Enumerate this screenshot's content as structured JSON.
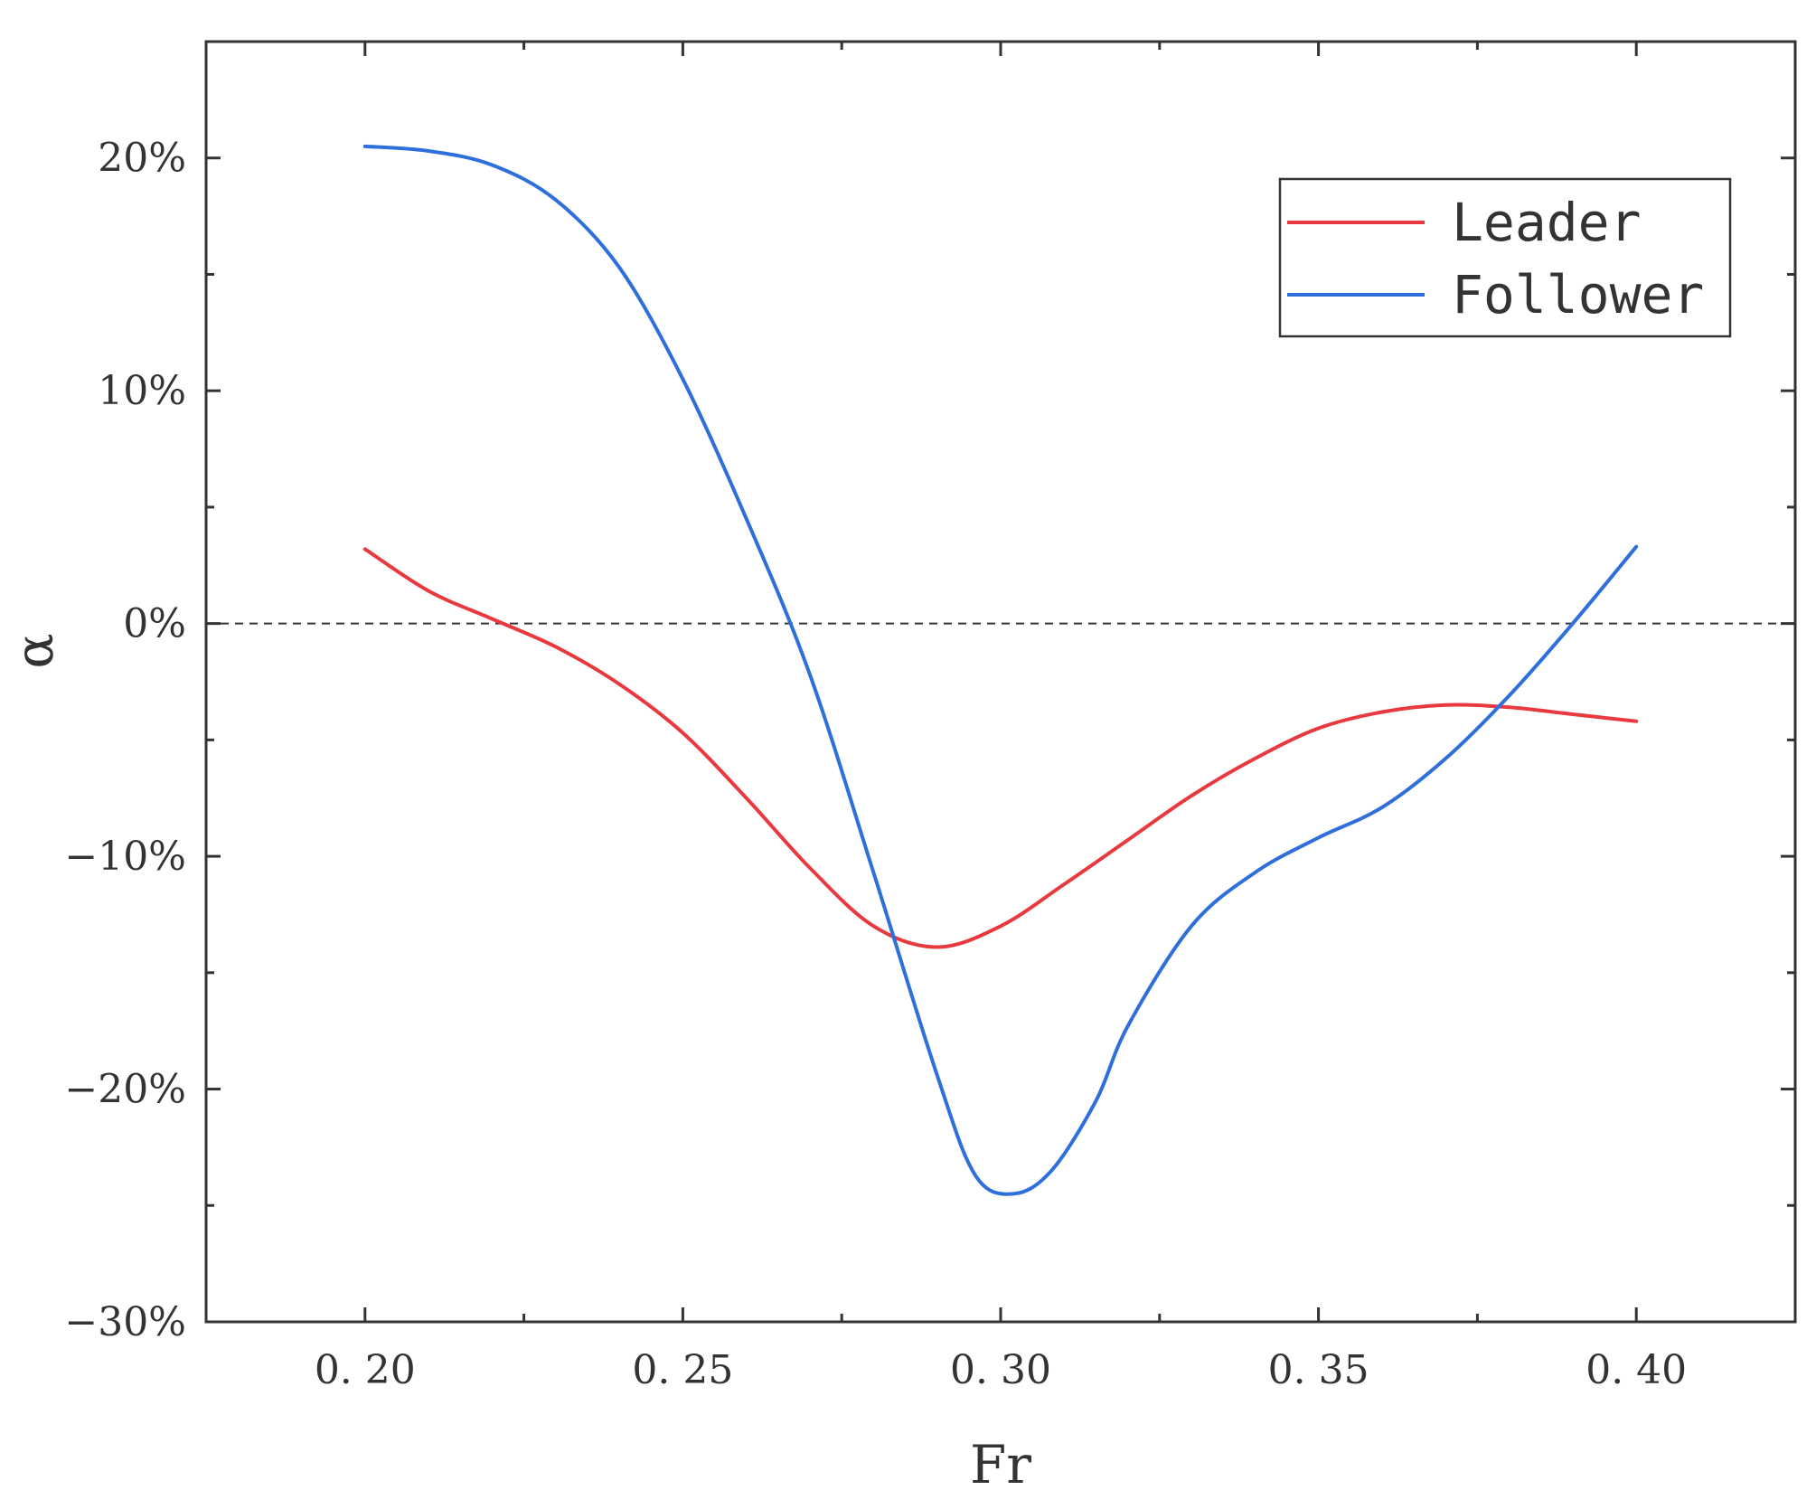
{
  "chart_data": {
    "type": "line",
    "xlabel": "Fr",
    "ylabel": "α",
    "xlim": [
      0.175,
      0.425
    ],
    "ylim": [
      -0.3,
      0.25
    ],
    "xticks": [
      0.2,
      0.25,
      0.3,
      0.35,
      0.4
    ],
    "xtick_labels": [
      "0. 20",
      "0. 25",
      "0. 30",
      "0. 35",
      "0. 40"
    ],
    "yticks": [
      0.2,
      0.1,
      0.0,
      -0.1,
      -0.2,
      -0.3
    ],
    "ytick_labels": [
      "20%",
      "10%",
      "0%",
      "−10%",
      "−20%",
      "−30%"
    ],
    "reference_line": {
      "y": 0,
      "style": "dashed",
      "color": "#333333"
    },
    "grid": false,
    "legend_position": "top-right",
    "series": [
      {
        "name": "Leader",
        "color": "#e8393f",
        "points": [
          [
            0.2,
            0.032
          ],
          [
            0.21,
            0.014
          ],
          [
            0.22,
            0.002
          ],
          [
            0.23,
            -0.01
          ],
          [
            0.24,
            -0.026
          ],
          [
            0.25,
            -0.047
          ],
          [
            0.26,
            -0.075
          ],
          [
            0.27,
            -0.105
          ],
          [
            0.28,
            -0.13
          ],
          [
            0.29,
            -0.139
          ],
          [
            0.3,
            -0.13
          ],
          [
            0.31,
            -0.112
          ],
          [
            0.32,
            -0.093
          ],
          [
            0.33,
            -0.074
          ],
          [
            0.34,
            -0.058
          ],
          [
            0.35,
            -0.045
          ],
          [
            0.36,
            -0.038
          ],
          [
            0.37,
            -0.035
          ],
          [
            0.38,
            -0.036
          ],
          [
            0.39,
            -0.039
          ],
          [
            0.4,
            -0.042
          ]
        ]
      },
      {
        "name": "Follower",
        "color": "#2e6fdb",
        "points": [
          [
            0.2,
            0.205
          ],
          [
            0.21,
            0.203
          ],
          [
            0.22,
            0.197
          ],
          [
            0.23,
            0.182
          ],
          [
            0.24,
            0.153
          ],
          [
            0.25,
            0.105
          ],
          [
            0.26,
            0.045
          ],
          [
            0.27,
            -0.022
          ],
          [
            0.28,
            -0.107
          ],
          [
            0.29,
            -0.194
          ],
          [
            0.296,
            -0.237
          ],
          [
            0.302,
            -0.245
          ],
          [
            0.308,
            -0.235
          ],
          [
            0.315,
            -0.205
          ],
          [
            0.32,
            -0.173
          ],
          [
            0.33,
            -0.13
          ],
          [
            0.34,
            -0.107
          ],
          [
            0.35,
            -0.092
          ],
          [
            0.36,
            -0.079
          ],
          [
            0.37,
            -0.058
          ],
          [
            0.38,
            -0.031
          ],
          [
            0.39,
            0.0
          ],
          [
            0.4,
            0.033
          ]
        ]
      }
    ]
  }
}
